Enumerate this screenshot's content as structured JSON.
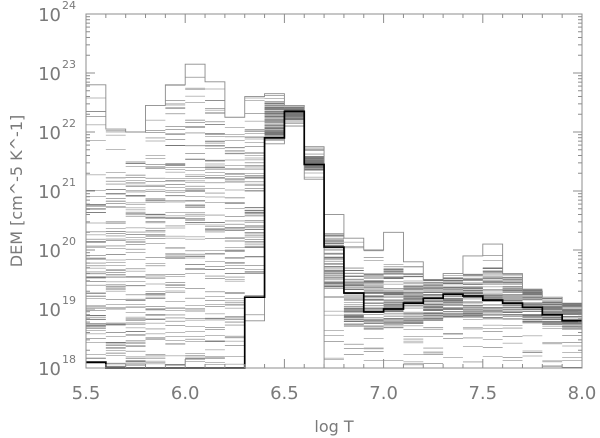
{
  "chart_data": {
    "type": "line",
    "style": "histogram-step",
    "xlabel": "log T",
    "ylabel": "DEM [cm^-5 K^-1]",
    "xlim": [
      5.5,
      8.0
    ],
    "ylim_log10": [
      18,
      24
    ],
    "y_scale": "log",
    "x_ticks": [
      "5.5",
      "6.0",
      "6.5",
      "7.0",
      "7.5",
      "8.0"
    ],
    "y_tick_base": "10",
    "y_tick_exponents": [
      "18",
      "19",
      "20",
      "21",
      "22",
      "23",
      "24"
    ],
    "bin_edges": [
      5.5,
      5.6,
      5.7,
      5.8,
      5.9,
      6.0,
      6.1,
      6.2,
      6.3,
      6.4,
      6.5,
      6.6,
      6.7,
      6.8,
      6.9,
      7.0,
      7.1,
      7.2,
      7.3,
      7.4,
      7.5,
      7.6,
      7.7,
      7.8,
      7.9,
      8.0
    ],
    "best_fit_log10_dem": [
      18.1,
      17.9,
      17.9,
      17.9,
      17.9,
      17.9,
      17.9,
      17.9,
      19.2,
      21.9,
      22.35,
      21.45,
      20.05,
      19.27,
      18.95,
      19.0,
      19.1,
      19.18,
      19.25,
      19.22,
      19.15,
      19.1,
      19.03,
      18.9,
      18.8
    ],
    "mc_min_log10_dem": [
      17.9,
      17.9,
      17.9,
      17.9,
      17.9,
      17.9,
      17.9,
      17.9,
      18.8,
      21.8,
      22.1,
      21.2,
      17.9,
      17.9,
      17.9,
      17.9,
      17.9,
      17.9,
      17.9,
      17.9,
      17.9,
      17.9,
      17.9,
      17.9,
      17.9
    ],
    "mc_max_log10_dem": [
      22.8,
      22.05,
      22.0,
      22.45,
      22.8,
      23.15,
      22.85,
      22.25,
      22.6,
      22.65,
      22.45,
      21.75,
      20.6,
      20.2,
      20.0,
      20.3,
      19.8,
      19.5,
      19.6,
      19.9,
      20.1,
      19.6,
      19.3,
      19.2,
      19.0
    ],
    "mc_dense_low_log10_dem": [
      18.0,
      18.0,
      18.0,
      18.0,
      18.0,
      18.0,
      18.0,
      18.0,
      19.6,
      21.85,
      22.2,
      21.35,
      19.3,
      18.7,
      18.6,
      18.7,
      18.75,
      18.8,
      18.85,
      18.85,
      18.85,
      18.8,
      18.75,
      18.7,
      18.65
    ],
    "mc_dense_high_log10_dem": [
      21.0,
      21.2,
      21.6,
      22.1,
      22.6,
      22.9,
      22.6,
      22.0,
      22.1,
      22.5,
      22.4,
      21.6,
      20.3,
      19.7,
      19.6,
      19.7,
      19.6,
      19.5,
      19.55,
      19.6,
      19.7,
      19.55,
      19.35,
      19.2,
      19.1
    ],
    "series": [
      {
        "role": "best-fit",
        "color": "#000000"
      },
      {
        "role": "monte-carlo-realizations",
        "count": 80,
        "color": "#777777"
      }
    ]
  }
}
